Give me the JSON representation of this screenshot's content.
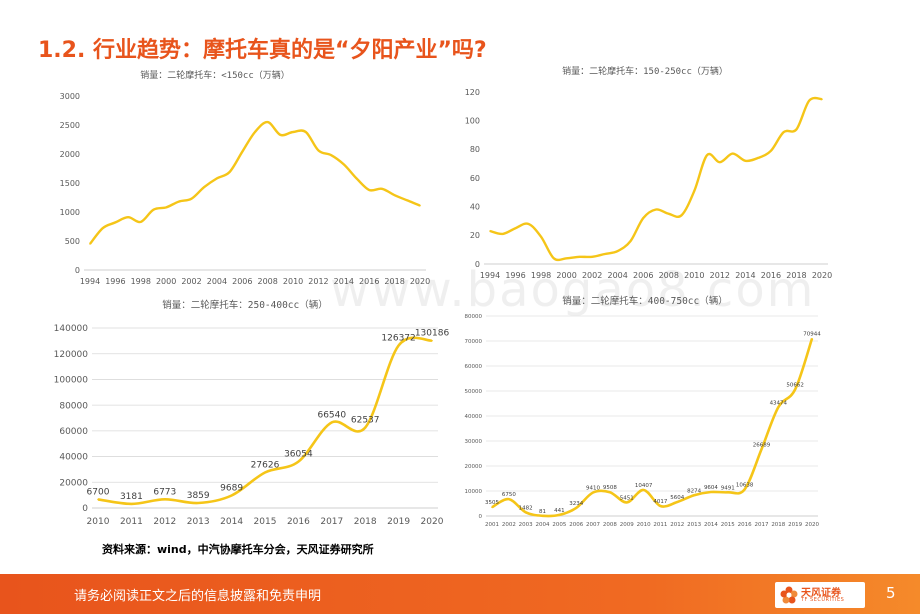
{
  "page": {
    "title": "1.2. 行业趋势：摩托车真的是“夕阳产业”吗?",
    "source": "资料来源：wind，中汽协摩托车分会，天风证券研究所",
    "disclaimer": "请务必阅读正文之后的信息披露和免责申明",
    "page_number": "5",
    "logo_name": "天风证券",
    "logo_sub": "TF SECURITIES",
    "watermark": "www.baogao8.com",
    "accent_color": "#e8541c",
    "line_color": "#f5c518"
  },
  "chart_data": [
    {
      "type": "line",
      "title": "销量：二轮摩托车：<150cc（万辆）",
      "x": [
        1994,
        1995,
        1996,
        1997,
        1998,
        1999,
        2000,
        2001,
        2002,
        2003,
        2004,
        2005,
        2006,
        2007,
        2008,
        2009,
        2010,
        2011,
        2012,
        2013,
        2014,
        2015,
        2016,
        2017,
        2018,
        2019,
        2020
      ],
      "x_tick_labels": [
        "1994",
        "1996",
        "1998",
        "2000",
        "2002",
        "2004",
        "2006",
        "2008",
        "2010",
        "2012",
        "2014",
        "2016",
        "2018",
        "2020"
      ],
      "series": [
        {
          "values": [
            450,
            720,
            820,
            910,
            830,
            1040,
            1080,
            1180,
            1230,
            1430,
            1580,
            1690,
            2040,
            2380,
            2550,
            2330,
            2380,
            2380,
            2060,
            1980,
            1820,
            1580,
            1380,
            1400,
            1290,
            1200,
            1110
          ]
        }
      ],
      "ylim": [
        0,
        3000
      ],
      "y_ticks": [
        0,
        500,
        1000,
        1500,
        2000,
        2500,
        3000
      ],
      "data_labels": false
    },
    {
      "type": "line",
      "title": "销量：二轮摩托车：150-250cc（万辆）",
      "x": [
        1994,
        1995,
        1996,
        1997,
        1998,
        1999,
        2000,
        2001,
        2002,
        2003,
        2004,
        2005,
        2006,
        2007,
        2008,
        2009,
        2010,
        2011,
        2012,
        2013,
        2014,
        2015,
        2016,
        2017,
        2018,
        2019,
        2020
      ],
      "x_tick_labels": [
        "1994",
        "1996",
        "1998",
        "2000",
        "2002",
        "2004",
        "2006",
        "2008",
        "2010",
        "2012",
        "2014",
        "2016",
        "2018",
        "2020"
      ],
      "series": [
        {
          "values": [
            23,
            21,
            25,
            28,
            19,
            4,
            4,
            5,
            5,
            7,
            9,
            16,
            32,
            38,
            35,
            34,
            51,
            76,
            71,
            77,
            72,
            74,
            79,
            92,
            94,
            114,
            115
          ]
        }
      ],
      "ylim": [
        0,
        120
      ],
      "y_ticks": [
        0,
        20,
        40,
        60,
        80,
        100,
        120
      ],
      "data_labels": false
    },
    {
      "type": "line",
      "title": "销量：二轮摩托车：250-400cc（辆）",
      "x": [
        2010,
        2011,
        2012,
        2013,
        2014,
        2015,
        2016,
        2017,
        2018,
        2019,
        2020
      ],
      "x_tick_labels": [
        "2010",
        "2011",
        "2012",
        "2013",
        "2014",
        "2015",
        "2016",
        "2017",
        "2018",
        "2019",
        "2020"
      ],
      "series": [
        {
          "values": [
            6700,
            3181,
            6773,
            3859,
            9689,
            27626,
            36054,
            66540,
            62537,
            126372,
            130186
          ]
        }
      ],
      "ylim": [
        0,
        140000
      ],
      "y_ticks": [
        0,
        20000,
        40000,
        60000,
        80000,
        100000,
        120000,
        140000
      ],
      "data_labels": true
    },
    {
      "type": "line",
      "title": "销量：二轮摩托车：400-750cc（辆）",
      "x": [
        2001,
        2002,
        2003,
        2004,
        2005,
        2006,
        2007,
        2008,
        2009,
        2010,
        2011,
        2012,
        2013,
        2014,
        2015,
        2016,
        2017,
        2018,
        2019,
        2020
      ],
      "x_tick_labels": [
        "2001",
        "2002",
        "2003",
        "2004",
        "2005",
        "2006",
        "2007",
        "2008",
        "2009",
        "2010",
        "2011",
        "2012",
        "2013",
        "2014",
        "2015",
        "2016",
        "2017",
        "2018",
        "2019",
        "2020"
      ],
      "series": [
        {
          "values": [
            3505,
            6750,
            1482,
            81,
            441,
            3234,
            9410,
            9508,
            5451,
            10407,
            4017,
            5604,
            8274,
            9604,
            9491,
            10638,
            26689,
            43474,
            50662,
            70944
          ]
        }
      ],
      "ylim": [
        0,
        80000
      ],
      "y_ticks": [
        0,
        10000,
        20000,
        30000,
        40000,
        50000,
        60000,
        70000,
        80000
      ],
      "data_labels": true
    }
  ]
}
